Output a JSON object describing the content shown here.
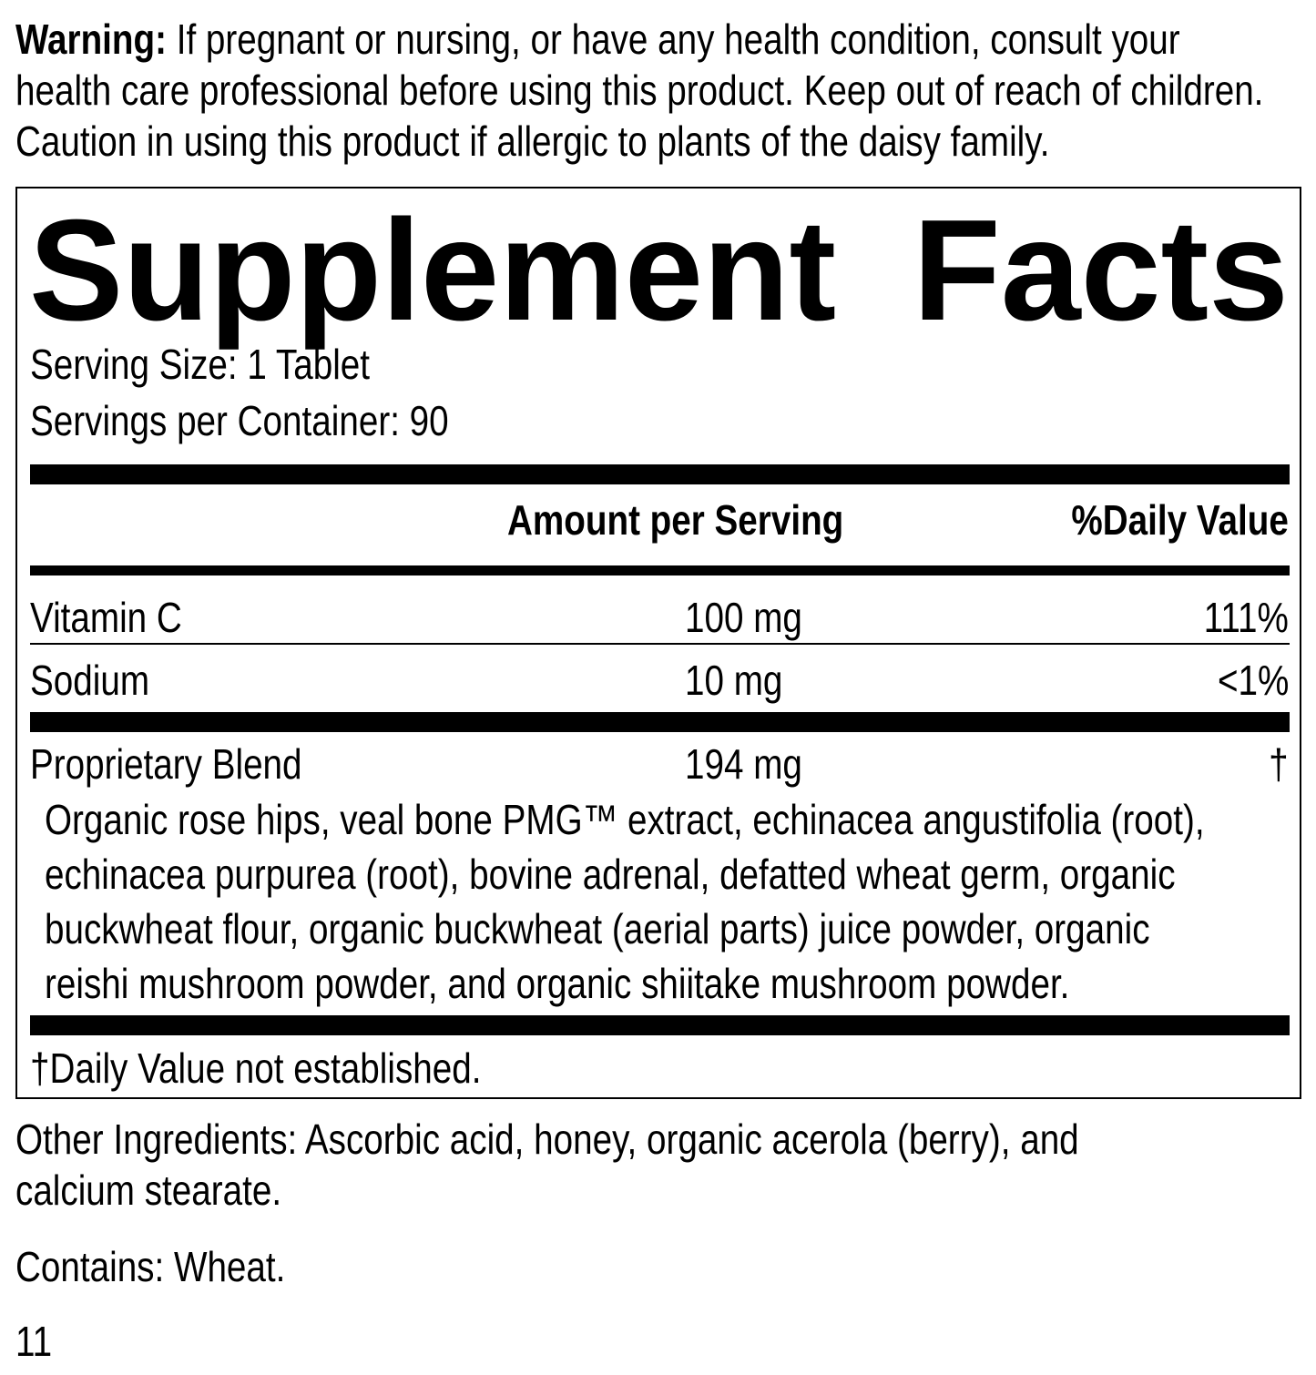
{
  "warning": {
    "label": "Warning:",
    "lines": [
      " If pregnant or nursing, or have any health condition, consult your",
      "health care professional before using this product. Keep out of reach of children.",
      "Caution in using this product if allergic to plants of the daisy family."
    ]
  },
  "facts": {
    "title_word1": "Supplement",
    "title_word2": "Facts",
    "serving_size": "Serving Size: 1 Tablet",
    "servings_per_container": "Servings per Container: 90",
    "header": {
      "amount": "Amount per Serving",
      "dv": "%Daily Value"
    },
    "rows": [
      {
        "name": "Vitamin C",
        "amount": "100 mg",
        "dv": "111%"
      },
      {
        "name": "Sodium",
        "amount": "10 mg",
        "dv": "<1%"
      },
      {
        "name": "Proprietary Blend",
        "amount": "194 mg",
        "dv": "†"
      }
    ],
    "blend_lines": [
      "Organic rose hips, veal bone PMG™ extract, echinacea angustifolia (root),",
      "echinacea purpurea (root), bovine adrenal, defatted wheat germ, organic",
      "buckwheat flour, organic buckwheat (aerial parts) juice powder, organic",
      "reishi mushroom powder, and organic shiitake mushroom powder."
    ],
    "footnote": "†Daily Value not established."
  },
  "other_ingredients": [
    "Other Ingredients: Ascorbic acid, honey, organic acerola (berry), and",
    "calcium stearate."
  ],
  "contains": "Contains: Wheat.",
  "page_number": "11"
}
